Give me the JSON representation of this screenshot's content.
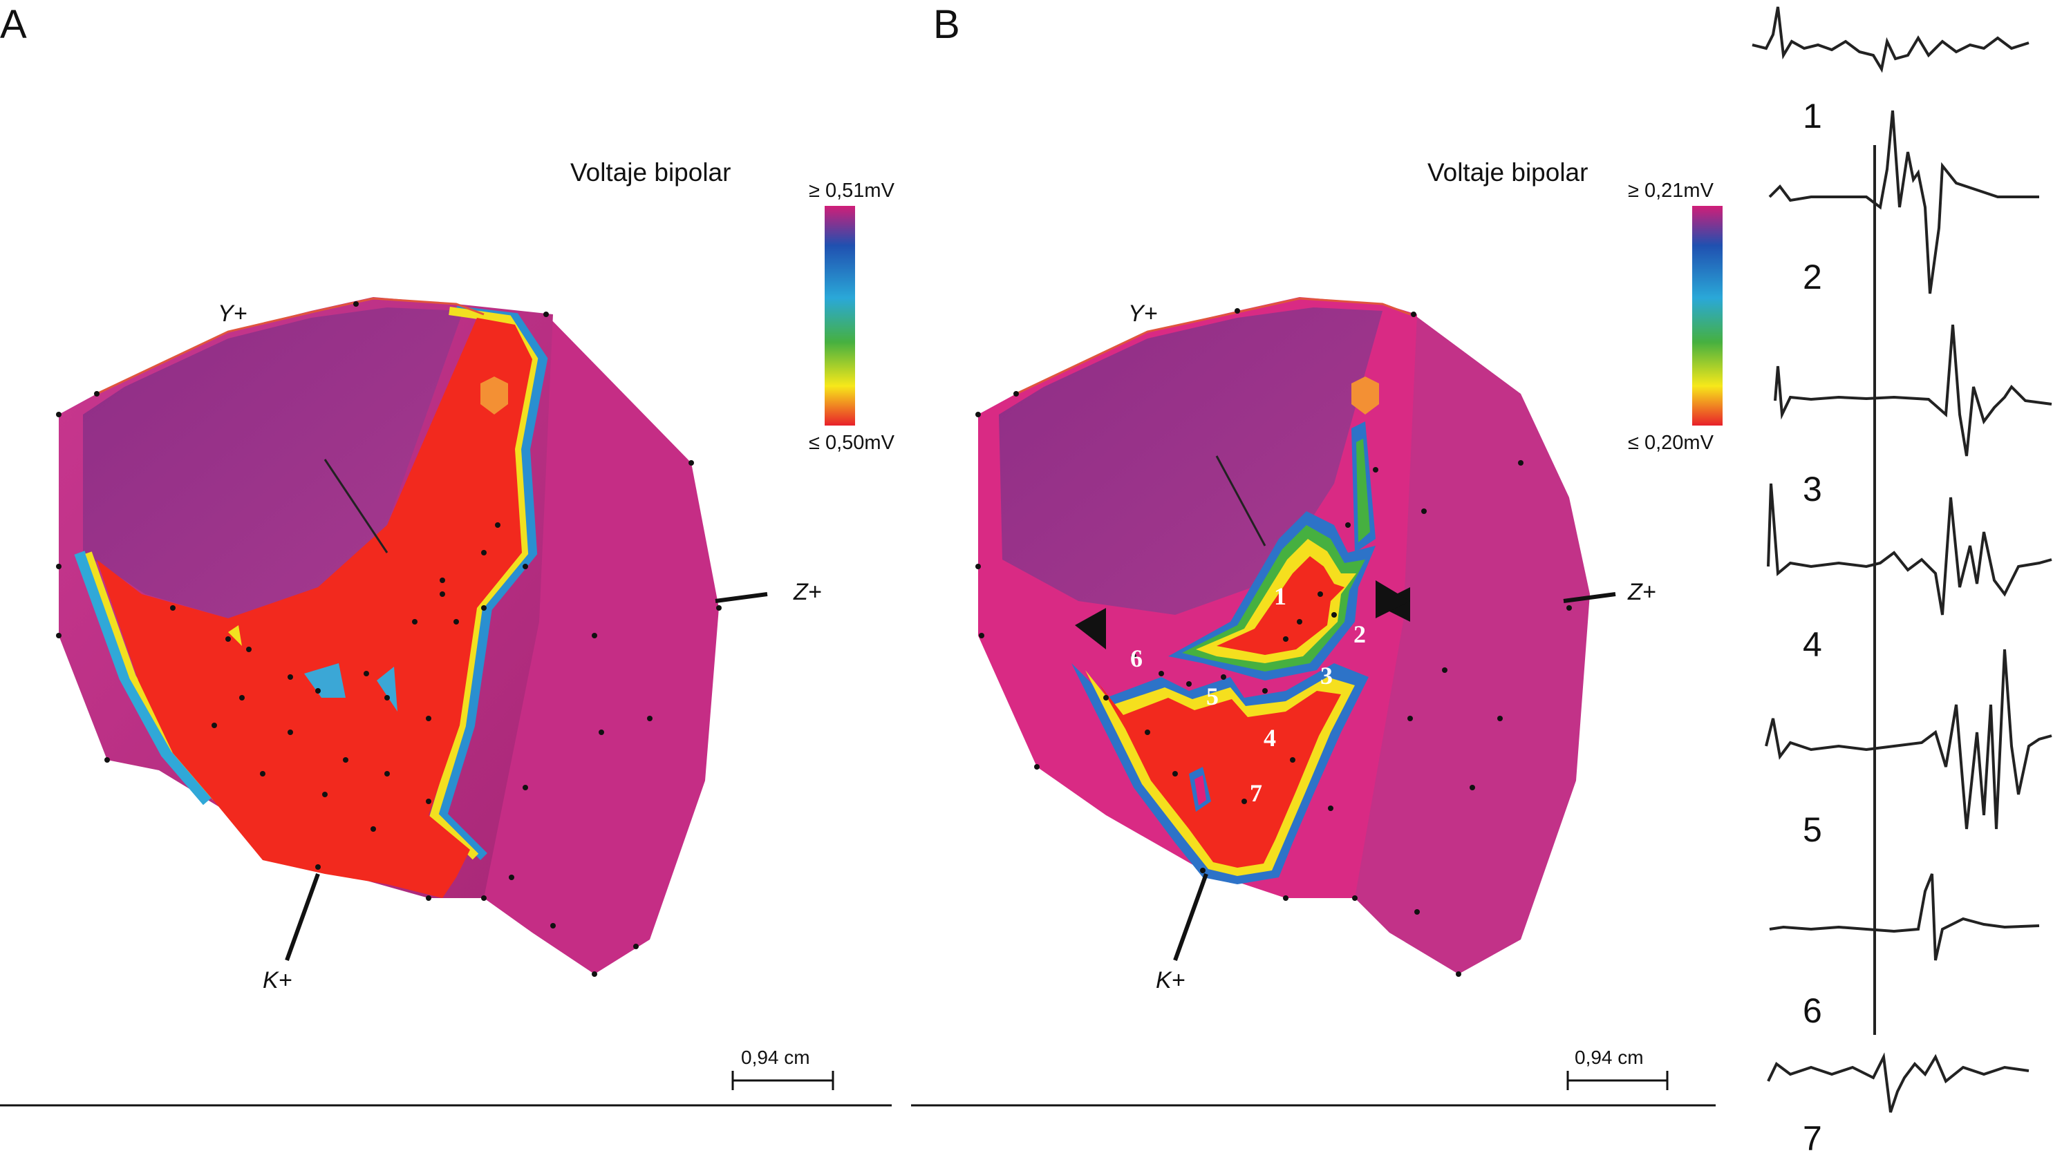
{
  "panels": [
    {
      "letter": "A",
      "legend_title": "Voltaje bipolar",
      "legend_max": "≥ 0,51mV",
      "legend_min": "≤ 0,50mV",
      "axis_y": "Y+",
      "axis_z": "Z+",
      "axis_k": "K+",
      "scale_label": "0,94 cm"
    },
    {
      "letter": "B",
      "legend_title": "Voltaje bipolar",
      "legend_max": "≥ 0,21mV",
      "legend_min": "≤ 0,20mV",
      "axis_y": "Y+",
      "axis_z": "Z+",
      "axis_k": "K+",
      "scale_label": "0,94 cm",
      "site_labels": [
        "1",
        "2",
        "3",
        "4",
        "5",
        "6",
        "7"
      ]
    }
  ],
  "traces": [
    "1",
    "2",
    "3",
    "4",
    "5",
    "6",
    "7"
  ],
  "colors": {
    "low_voltage": "#f2291e",
    "normal_voltage": "#e0207a",
    "wall_purple": "#b8287f",
    "gradient": [
      "#e8202a",
      "#f7e81a",
      "#46b040",
      "#2aa8d8",
      "#2050b0",
      "#d01e78"
    ]
  }
}
